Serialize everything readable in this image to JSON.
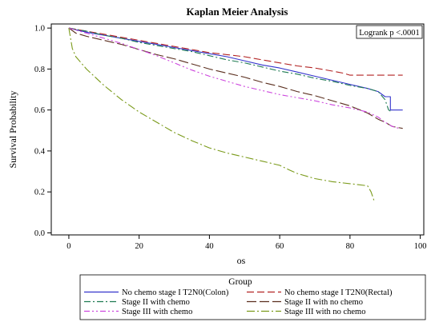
{
  "chart_data": {
    "type": "line",
    "title": "Kaplan Meier Analysis",
    "xlabel": "os",
    "ylabel": "Survival Probability",
    "xlim": [
      -5,
      101
    ],
    "ylim": [
      -0.01,
      1.02
    ],
    "x_ticks": [
      "0",
      "20",
      "40",
      "60",
      "80",
      "100"
    ],
    "y_ticks": [
      "0.0",
      "0.2",
      "0.4",
      "0.6",
      "0.8",
      "1.0"
    ],
    "annotation": "Logrank p <.0001",
    "legend_title": "Group",
    "legend_position": "bottom",
    "series": [
      {
        "name": "No chemo stage I T2N0(Colon)",
        "color": "#3333cc",
        "dash": "solid",
        "points": [
          [
            0,
            1.0
          ],
          [
            5,
            0.98
          ],
          [
            10,
            0.965
          ],
          [
            15,
            0.95
          ],
          [
            20,
            0.935
          ],
          [
            25,
            0.92
          ],
          [
            30,
            0.905
          ],
          [
            35,
            0.89
          ],
          [
            40,
            0.875
          ],
          [
            45,
            0.86
          ],
          [
            50,
            0.84
          ],
          [
            55,
            0.82
          ],
          [
            60,
            0.805
          ],
          [
            65,
            0.785
          ],
          [
            70,
            0.765
          ],
          [
            75,
            0.745
          ],
          [
            80,
            0.725
          ],
          [
            85,
            0.705
          ],
          [
            88,
            0.69
          ],
          [
            90,
            0.665
          ],
          [
            91.5,
            0.665
          ],
          [
            91.5,
            0.6
          ],
          [
            95,
            0.6
          ]
        ]
      },
      {
        "name": "No chemo stage I T2N0(Rectal)",
        "color": "#b22222",
        "dash": "long",
        "points": [
          [
            0,
            1.0
          ],
          [
            5,
            0.985
          ],
          [
            10,
            0.97
          ],
          [
            15,
            0.955
          ],
          [
            20,
            0.94
          ],
          [
            25,
            0.925
          ],
          [
            30,
            0.91
          ],
          [
            35,
            0.895
          ],
          [
            40,
            0.88
          ],
          [
            45,
            0.87
          ],
          [
            50,
            0.86
          ],
          [
            55,
            0.845
          ],
          [
            60,
            0.83
          ],
          [
            65,
            0.815
          ],
          [
            70,
            0.805
          ],
          [
            75,
            0.79
          ],
          [
            78,
            0.78
          ],
          [
            80,
            0.77
          ],
          [
            82,
            0.77
          ],
          [
            90,
            0.77
          ],
          [
            95,
            0.77
          ]
        ]
      },
      {
        "name": "Stage II with chemo",
        "color": "#1e7a52",
        "dash": "dashdot",
        "points": [
          [
            0,
            1.0
          ],
          [
            5,
            0.985
          ],
          [
            10,
            0.965
          ],
          [
            15,
            0.95
          ],
          [
            20,
            0.93
          ],
          [
            25,
            0.915
          ],
          [
            30,
            0.9
          ],
          [
            35,
            0.885
          ],
          [
            40,
            0.865
          ],
          [
            45,
            0.845
          ],
          [
            50,
            0.83
          ],
          [
            55,
            0.81
          ],
          [
            60,
            0.79
          ],
          [
            65,
            0.775
          ],
          [
            70,
            0.755
          ],
          [
            75,
            0.74
          ],
          [
            80,
            0.72
          ],
          [
            85,
            0.705
          ],
          [
            88,
            0.69
          ],
          [
            90,
            0.65
          ],
          [
            91,
            0.6
          ],
          [
            92,
            0.59
          ]
        ]
      },
      {
        "name": "Stage II with no chemo",
        "color": "#5a2e1e",
        "dash": "longdash",
        "points": [
          [
            0,
            1.0
          ],
          [
            2,
            0.975
          ],
          [
            5,
            0.96
          ],
          [
            10,
            0.94
          ],
          [
            15,
            0.92
          ],
          [
            20,
            0.895
          ],
          [
            25,
            0.87
          ],
          [
            30,
            0.85
          ],
          [
            35,
            0.825
          ],
          [
            40,
            0.8
          ],
          [
            45,
            0.78
          ],
          [
            50,
            0.76
          ],
          [
            55,
            0.735
          ],
          [
            60,
            0.715
          ],
          [
            65,
            0.69
          ],
          [
            70,
            0.67
          ],
          [
            75,
            0.645
          ],
          [
            80,
            0.62
          ],
          [
            85,
            0.585
          ],
          [
            88,
            0.555
          ],
          [
            90,
            0.54
          ],
          [
            92,
            0.52
          ],
          [
            95,
            0.51
          ]
        ]
      },
      {
        "name": "Stage III with chemo",
        "color": "#cc44dd",
        "dash": "dashdotdot",
        "points": [
          [
            0,
            1.0
          ],
          [
            5,
            0.975
          ],
          [
            10,
            0.95
          ],
          [
            15,
            0.925
          ],
          [
            20,
            0.895
          ],
          [
            25,
            0.865
          ],
          [
            30,
            0.83
          ],
          [
            35,
            0.795
          ],
          [
            40,
            0.765
          ],
          [
            45,
            0.74
          ],
          [
            50,
            0.715
          ],
          [
            55,
            0.695
          ],
          [
            60,
            0.675
          ],
          [
            65,
            0.66
          ],
          [
            70,
            0.645
          ],
          [
            75,
            0.625
          ],
          [
            80,
            0.61
          ],
          [
            85,
            0.59
          ],
          [
            88,
            0.565
          ],
          [
            90,
            0.54
          ],
          [
            92,
            0.52
          ],
          [
            94,
            0.51
          ]
        ]
      },
      {
        "name": "Stage III with no chemo",
        "color": "#7a9a1a",
        "dash": "dashdotlong",
        "points": [
          [
            0,
            1.0
          ],
          [
            1,
            0.9
          ],
          [
            2,
            0.86
          ],
          [
            5,
            0.8
          ],
          [
            10,
            0.72
          ],
          [
            15,
            0.65
          ],
          [
            20,
            0.59
          ],
          [
            25,
            0.54
          ],
          [
            30,
            0.49
          ],
          [
            35,
            0.45
          ],
          [
            40,
            0.415
          ],
          [
            45,
            0.39
          ],
          [
            50,
            0.37
          ],
          [
            55,
            0.35
          ],
          [
            60,
            0.33
          ],
          [
            63,
            0.305
          ],
          [
            65,
            0.29
          ],
          [
            70,
            0.265
          ],
          [
            75,
            0.25
          ],
          [
            80,
            0.24
          ],
          [
            85,
            0.23
          ],
          [
            86,
            0.2
          ],
          [
            87,
            0.15
          ]
        ]
      }
    ]
  }
}
